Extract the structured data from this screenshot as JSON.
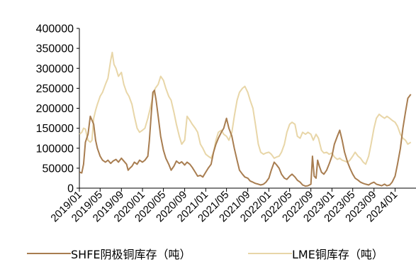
{
  "chart_data": {
    "type": "line",
    "title": "",
    "xlabel": "",
    "ylabel": "",
    "ylim": [
      0,
      400000
    ],
    "yticks": [
      "0",
      "50000",
      "100000",
      "150000",
      "200000",
      "250000",
      "300000",
      "350000",
      "400000"
    ],
    "xlim": [
      "2019/01",
      "2024/05"
    ],
    "xticks": [
      "2019/01",
      "2019/05",
      "2019/09",
      "2020/01",
      "2020/05",
      "2020/09",
      "2021/01",
      "2021/05",
      "2021/09",
      "2022/01",
      "2022/05",
      "2022/09",
      "2023/01",
      "2023/05",
      "2023/09",
      "2024/01"
    ],
    "grid": false,
    "legend_position": "bottom",
    "series": [
      {
        "name": "SHFE阴极铜库存（吨）",
        "color": "#a87d50",
        "points": [
          [
            "2019/01/02",
            40000
          ],
          [
            "2019/01/15",
            38000
          ],
          [
            "2019/01/25",
            60000
          ],
          [
            "2019/02/05",
            115000
          ],
          [
            "2019/02/20",
            135000
          ],
          [
            "2019/03/05",
            180000
          ],
          [
            "2019/03/15",
            170000
          ],
          [
            "2019/03/25",
            160000
          ],
          [
            "2019/04/05",
            120000
          ],
          [
            "2019/04/15",
            100000
          ],
          [
            "2019/05/01",
            80000
          ],
          [
            "2019/05/15",
            70000
          ],
          [
            "2019/06/01",
            65000
          ],
          [
            "2019/06/15",
            70000
          ],
          [
            "2019/07/01",
            62000
          ],
          [
            "2019/07/15",
            68000
          ],
          [
            "2019/08/01",
            72000
          ],
          [
            "2019/08/15",
            65000
          ],
          [
            "2019/09/01",
            75000
          ],
          [
            "2019/09/15",
            68000
          ],
          [
            "2019/10/01",
            60000
          ],
          [
            "2019/10/10",
            45000
          ],
          [
            "2019/10/20",
            50000
          ],
          [
            "2019/11/01",
            55000
          ],
          [
            "2019/11/15",
            65000
          ],
          [
            "2019/12/01",
            60000
          ],
          [
            "2019/12/15",
            70000
          ],
          [
            "2020/01/01",
            65000
          ],
          [
            "2020/01/15",
            70000
          ],
          [
            "2020/02/01",
            80000
          ],
          [
            "2020/02/10",
            120000
          ],
          [
            "2020/02/20",
            180000
          ],
          [
            "2020/03/01",
            240000
          ],
          [
            "2020/03/10",
            245000
          ],
          [
            "2020/03/20",
            220000
          ],
          [
            "2020/04/01",
            180000
          ],
          [
            "2020/04/15",
            130000
          ],
          [
            "2020/05/01",
            95000
          ],
          [
            "2020/05/15",
            75000
          ],
          [
            "2020/06/01",
            60000
          ],
          [
            "2020/06/15",
            45000
          ],
          [
            "2020/07/01",
            55000
          ],
          [
            "2020/07/15",
            68000
          ],
          [
            "2020/08/01",
            62000
          ],
          [
            "2020/08/15",
            66000
          ],
          [
            "2020/09/01",
            58000
          ],
          [
            "2020/09/15",
            65000
          ],
          [
            "2020/10/01",
            60000
          ],
          [
            "2020/10/15",
            52000
          ],
          [
            "2020/11/01",
            40000
          ],
          [
            "2020/11/15",
            30000
          ],
          [
            "2020/12/01",
            32000
          ],
          [
            "2020/12/15",
            28000
          ],
          [
            "2021/01/01",
            40000
          ],
          [
            "2021/01/15",
            50000
          ],
          [
            "2021/02/01",
            60000
          ],
          [
            "2021/02/15",
            90000
          ],
          [
            "2021/03/01",
            110000
          ],
          [
            "2021/03/15",
            125000
          ],
          [
            "2021/04/01",
            140000
          ],
          [
            "2021/04/15",
            150000
          ],
          [
            "2021/05/01",
            175000
          ],
          [
            "2021/05/15",
            150000
          ],
          [
            "2021/06/01",
            130000
          ],
          [
            "2021/06/15",
            100000
          ],
          [
            "2021/07/01",
            70000
          ],
          [
            "2021/07/15",
            45000
          ],
          [
            "2021/08/01",
            35000
          ],
          [
            "2021/08/15",
            28000
          ],
          [
            "2021/09/01",
            25000
          ],
          [
            "2021/09/15",
            18000
          ],
          [
            "2021/10/01",
            15000
          ],
          [
            "2021/10/15",
            12000
          ],
          [
            "2021/11/01",
            10000
          ],
          [
            "2021/11/15",
            8000
          ],
          [
            "2021/12/01",
            10000
          ],
          [
            "2021/12/15",
            15000
          ],
          [
            "2022/01/01",
            25000
          ],
          [
            "2022/01/15",
            45000
          ],
          [
            "2022/02/01",
            65000
          ],
          [
            "2022/02/15",
            58000
          ],
          [
            "2022/03/01",
            50000
          ],
          [
            "2022/03/15",
            35000
          ],
          [
            "2022/04/01",
            25000
          ],
          [
            "2022/04/15",
            22000
          ],
          [
            "2022/05/01",
            30000
          ],
          [
            "2022/05/15",
            35000
          ],
          [
            "2022/06/01",
            28000
          ],
          [
            "2022/06/15",
            20000
          ],
          [
            "2022/07/01",
            15000
          ],
          [
            "2022/07/15",
            8000
          ],
          [
            "2022/08/01",
            5000
          ],
          [
            "2022/08/15",
            6000
          ],
          [
            "2022/09/01",
            10000
          ],
          [
            "2022/09/10",
            80000
          ],
          [
            "2022/09/20",
            30000
          ],
          [
            "2022/10/01",
            25000
          ],
          [
            "2022/10/10",
            70000
          ],
          [
            "2022/10/20",
            55000
          ],
          [
            "2022/11/01",
            40000
          ],
          [
            "2022/11/15",
            35000
          ],
          [
            "2022/12/01",
            45000
          ],
          [
            "2022/12/15",
            60000
          ],
          [
            "2023/01/01",
            80000
          ],
          [
            "2023/01/15",
            110000
          ],
          [
            "2023/02/01",
            130000
          ],
          [
            "2023/02/15",
            145000
          ],
          [
            "2023/03/01",
            120000
          ],
          [
            "2023/03/15",
            90000
          ],
          [
            "2023/04/01",
            65000
          ],
          [
            "2023/04/15",
            50000
          ],
          [
            "2023/05/01",
            35000
          ],
          [
            "2023/05/15",
            25000
          ],
          [
            "2023/06/01",
            20000
          ],
          [
            "2023/06/15",
            15000
          ],
          [
            "2023/07/01",
            12000
          ],
          [
            "2023/07/15",
            10000
          ],
          [
            "2023/08/01",
            8000
          ],
          [
            "2023/08/15",
            12000
          ],
          [
            "2023/09/01",
            15000
          ],
          [
            "2023/09/15",
            10000
          ],
          [
            "2023/10/01",
            8000
          ],
          [
            "2023/10/15",
            6000
          ],
          [
            "2023/11/01",
            10000
          ],
          [
            "2023/11/15",
            6000
          ],
          [
            "2023/12/01",
            8000
          ],
          [
            "2023/12/15",
            15000
          ],
          [
            "2024/01/01",
            30000
          ],
          [
            "2024/01/15",
            60000
          ],
          [
            "2024/02/01",
            100000
          ],
          [
            "2024/02/15",
            150000
          ],
          [
            "2024/03/01",
            190000
          ],
          [
            "2024/03/15",
            225000
          ],
          [
            "2024/04/01",
            235000
          ]
        ]
      },
      {
        "name": "LME铜库存（吨）",
        "color": "#e8d6a8",
        "points": [
          [
            "2019/01/02",
            135000
          ],
          [
            "2019/01/15",
            140000
          ],
          [
            "2019/01/25",
            150000
          ],
          [
            "2019/02/05",
            148000
          ],
          [
            "2019/02/20",
            120000
          ],
          [
            "2019/03/05",
            115000
          ],
          [
            "2019/03/15",
            120000
          ],
          [
            "2019/03/25",
            175000
          ],
          [
            "2019/04/05",
            195000
          ],
          [
            "2019/04/15",
            210000
          ],
          [
            "2019/05/01",
            230000
          ],
          [
            "2019/05/15",
            240000
          ],
          [
            "2019/06/01",
            260000
          ],
          [
            "2019/06/15",
            275000
          ],
          [
            "2019/07/01",
            320000
          ],
          [
            "2019/07/10",
            340000
          ],
          [
            "2019/07/20",
            310000
          ],
          [
            "2019/08/01",
            300000
          ],
          [
            "2019/08/15",
            280000
          ],
          [
            "2019/09/01",
            290000
          ],
          [
            "2019/09/15",
            260000
          ],
          [
            "2019/10/01",
            240000
          ],
          [
            "2019/10/15",
            230000
          ],
          [
            "2019/11/01",
            210000
          ],
          [
            "2019/11/15",
            180000
          ],
          [
            "2019/12/01",
            150000
          ],
          [
            "2019/12/15",
            140000
          ],
          [
            "2020/01/01",
            145000
          ],
          [
            "2020/01/15",
            150000
          ],
          [
            "2020/02/01",
            175000
          ],
          [
            "2020/02/15",
            200000
          ],
          [
            "2020/03/01",
            230000
          ],
          [
            "2020/03/15",
            250000
          ],
          [
            "2020/04/01",
            260000
          ],
          [
            "2020/04/15",
            280000
          ],
          [
            "2020/05/01",
            270000
          ],
          [
            "2020/05/15",
            250000
          ],
          [
            "2020/06/01",
            230000
          ],
          [
            "2020/06/15",
            220000
          ],
          [
            "2020/07/01",
            190000
          ],
          [
            "2020/07/15",
            160000
          ],
          [
            "2020/08/01",
            130000
          ],
          [
            "2020/08/15",
            110000
          ],
          [
            "2020/09/01",
            120000
          ],
          [
            "2020/09/15",
            180000
          ],
          [
            "2020/10/01",
            170000
          ],
          [
            "2020/10/15",
            160000
          ],
          [
            "2020/11/01",
            150000
          ],
          [
            "2020/11/15",
            140000
          ],
          [
            "2020/12/01",
            110000
          ],
          [
            "2020/12/15",
            100000
          ],
          [
            "2021/01/01",
            85000
          ],
          [
            "2021/01/15",
            80000
          ],
          [
            "2021/02/01",
            75000
          ],
          [
            "2021/02/15",
            90000
          ],
          [
            "2021/03/01",
            120000
          ],
          [
            "2021/03/15",
            140000
          ],
          [
            "2021/04/01",
            145000
          ],
          [
            "2021/04/15",
            135000
          ],
          [
            "2021/05/01",
            130000
          ],
          [
            "2021/05/15",
            120000
          ],
          [
            "2021/06/01",
            140000
          ],
          [
            "2021/06/15",
            180000
          ],
          [
            "2021/07/01",
            220000
          ],
          [
            "2021/07/15",
            240000
          ],
          [
            "2021/08/01",
            250000
          ],
          [
            "2021/08/15",
            255000
          ],
          [
            "2021/09/01",
            240000
          ],
          [
            "2021/09/15",
            220000
          ],
          [
            "2021/10/01",
            200000
          ],
          [
            "2021/10/15",
            160000
          ],
          [
            "2021/11/01",
            110000
          ],
          [
            "2021/11/15",
            90000
          ],
          [
            "2021/12/01",
            85000
          ],
          [
            "2021/12/15",
            88000
          ],
          [
            "2022/01/01",
            90000
          ],
          [
            "2022/01/15",
            85000
          ],
          [
            "2022/02/01",
            75000
          ],
          [
            "2022/02/15",
            78000
          ],
          [
            "2022/03/01",
            80000
          ],
          [
            "2022/03/15",
            90000
          ],
          [
            "2022/04/01",
            110000
          ],
          [
            "2022/04/15",
            140000
          ],
          [
            "2022/05/01",
            160000
          ],
          [
            "2022/05/15",
            165000
          ],
          [
            "2022/06/01",
            160000
          ],
          [
            "2022/06/15",
            130000
          ],
          [
            "2022/07/01",
            125000
          ],
          [
            "2022/07/15",
            140000
          ],
          [
            "2022/08/01",
            135000
          ],
          [
            "2022/08/15",
            140000
          ],
          [
            "2022/09/01",
            135000
          ],
          [
            "2022/09/15",
            120000
          ],
          [
            "2022/10/01",
            135000
          ],
          [
            "2022/10/15",
            125000
          ],
          [
            "2022/11/01",
            95000
          ],
          [
            "2022/11/15",
            88000
          ],
          [
            "2022/12/01",
            90000
          ],
          [
            "2022/12/15",
            85000
          ],
          [
            "2023/01/01",
            88000
          ],
          [
            "2023/01/15",
            78000
          ],
          [
            "2023/02/01",
            72000
          ],
          [
            "2023/02/15",
            75000
          ],
          [
            "2023/03/01",
            70000
          ],
          [
            "2023/03/15",
            68000
          ],
          [
            "2023/04/01",
            65000
          ],
          [
            "2023/04/15",
            70000
          ],
          [
            "2023/05/01",
            80000
          ],
          [
            "2023/05/15",
            90000
          ],
          [
            "2023/06/01",
            80000
          ],
          [
            "2023/06/15",
            75000
          ],
          [
            "2023/07/01",
            65000
          ],
          [
            "2023/07/15",
            60000
          ],
          [
            "2023/08/01",
            80000
          ],
          [
            "2023/08/15",
            110000
          ],
          [
            "2023/09/01",
            150000
          ],
          [
            "2023/09/15",
            175000
          ],
          [
            "2023/10/01",
            185000
          ],
          [
            "2023/10/15",
            180000
          ],
          [
            "2023/11/01",
            175000
          ],
          [
            "2023/11/15",
            180000
          ],
          [
            "2023/12/01",
            175000
          ],
          [
            "2023/12/15",
            170000
          ],
          [
            "2024/01/01",
            165000
          ],
          [
            "2024/01/15",
            155000
          ],
          [
            "2024/02/01",
            135000
          ],
          [
            "2024/02/15",
            125000
          ],
          [
            "2024/03/01",
            120000
          ],
          [
            "2024/03/15",
            110000
          ],
          [
            "2024/04/01",
            115000
          ]
        ]
      }
    ]
  }
}
